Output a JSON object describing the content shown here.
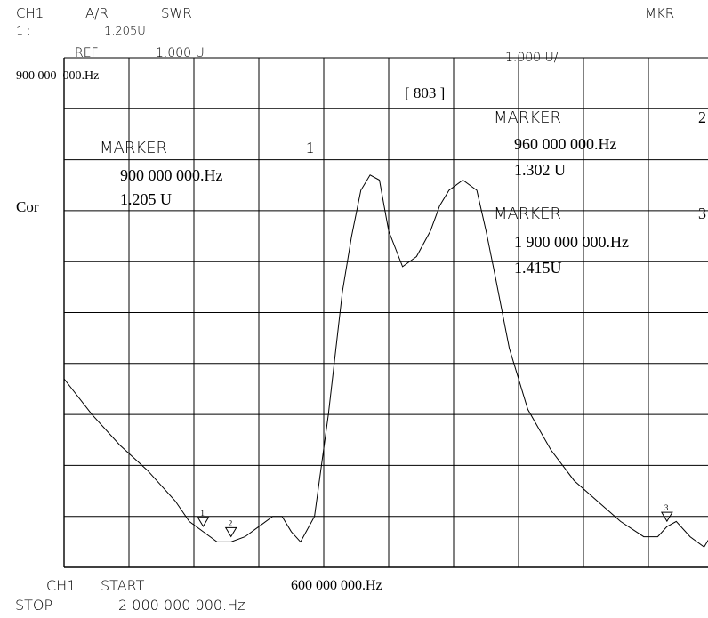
{
  "header": {
    "channel": "CH1",
    "measurement": "A/R",
    "format": "SWR",
    "mkr": "MKR",
    "marker_index": "1 :",
    "marker_value": "1.205U",
    "ref_label": "REF",
    "ref_value": "1.000 U",
    "scale": "1.000 U/",
    "freq": "900 000  000.Hz",
    "points": "[ 803 ]",
    "cor": "Cor"
  },
  "markers": [
    {
      "title": "MARKER",
      "num": "1",
      "freq": "900 000 000.Hz",
      "value": "1.205 U"
    },
    {
      "title": "MARKER",
      "num": "2",
      "freq": "960 000 000.Hz",
      "value": "1.302 U"
    },
    {
      "title": "MARKER",
      "num": "3",
      "freq": "1 900 000 000.Hz",
      "value": "1.415U"
    }
  ],
  "footer": {
    "ch": "CH1",
    "start_label": "START",
    "start_value": "600 000 000.Hz",
    "stop_label": "STOP",
    "stop_value": "2 000 000 000.Hz"
  },
  "chart_data": {
    "type": "line",
    "x_unit": "Hz",
    "x_range": [
      600000000,
      2000000000
    ],
    "y_divisions": 10,
    "x_divisions": 10,
    "series": [
      {
        "x": [
          600000000,
          660000000,
          720000000,
          780000000,
          840000000,
          870000000,
          900000000,
          930000000,
          960000000,
          990000000,
          1020000000,
          1050000000,
          1070000000,
          1090000000,
          1110000000,
          1140000000,
          1170000000,
          1200000000,
          1220000000,
          1240000000,
          1260000000,
          1280000000,
          1300000000,
          1330000000,
          1360000000,
          1390000000,
          1410000000,
          1430000000,
          1460000000,
          1490000000,
          1510000000,
          1530000000,
          1560000000,
          1600000000,
          1650000000,
          1700000000,
          1750000000,
          1800000000,
          1850000000,
          1880000000,
          1900000000,
          1920000000,
          1950000000,
          1980000000,
          2000000000
        ],
        "y": [
          0.37,
          0.3,
          0.24,
          0.19,
          0.13,
          0.09,
          0.07,
          0.05,
          0.05,
          0.06,
          0.08,
          0.1,
          0.1,
          0.07,
          0.05,
          0.1,
          0.3,
          0.54,
          0.65,
          0.74,
          0.77,
          0.76,
          0.66,
          0.59,
          0.61,
          0.66,
          0.71,
          0.74,
          0.76,
          0.74,
          0.66,
          0.57,
          0.43,
          0.31,
          0.23,
          0.17,
          0.13,
          0.09,
          0.06,
          0.06,
          0.08,
          0.09,
          0.06,
          0.04,
          0.07
        ]
      }
    ],
    "marker_x": [
      900000000,
      960000000,
      1900000000
    ]
  }
}
